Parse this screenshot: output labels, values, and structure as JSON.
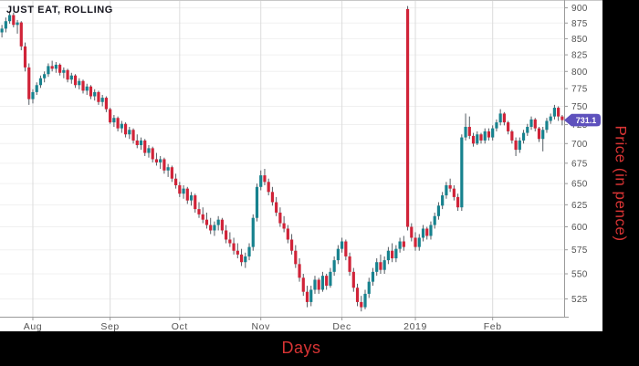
{
  "title": "JUST EAT, ROLLING",
  "axes": {
    "y_label": "Price (in pence)",
    "x_label": "Days"
  },
  "price_badge": {
    "value": "731.1"
  },
  "colors": {
    "up": "#17828e",
    "down": "#d02338",
    "wick": "#555c63",
    "grid_h": "#f0f0f0",
    "grid_v": "#dcdcdc",
    "axis": "#9a9a9a",
    "border_top": "#c8c8c8",
    "tick_label": "#525252",
    "axis_title": "#d83434",
    "panel_bg": "#000000",
    "chart_bg": "#ffffff",
    "badge_bg": "#5e51bd",
    "badge_text": "#ffffff",
    "title_color": "#15151e"
  },
  "chart_data": {
    "type": "candlestick",
    "title": "JUST EAT, ROLLING",
    "xlabel": "Days",
    "ylabel": "Price (in pence)",
    "y_scale": "log",
    "ylim": [
      508,
      907
    ],
    "grid": true,
    "y_ticks": [
      900,
      875,
      850,
      825,
      800,
      775,
      750,
      725,
      700,
      675,
      650,
      625,
      600,
      575,
      550,
      525
    ],
    "x_ticks": [
      {
        "label": "Aug",
        "index": 8
      },
      {
        "label": "Sep",
        "index": 28
      },
      {
        "label": "Oct",
        "index": 46
      },
      {
        "label": "Nov",
        "index": 67
      },
      {
        "label": "Dec",
        "index": 88
      },
      {
        "label": "2019",
        "index": 107
      },
      {
        "label": "Feb",
        "index": 127
      }
    ],
    "last_price": 731.1,
    "candles": [
      [
        860,
        872,
        852,
        866
      ],
      [
        866,
        884,
        860,
        878
      ],
      [
        878,
        895,
        874,
        888
      ],
      [
        888,
        892,
        868,
        872
      ],
      [
        872,
        880,
        858,
        876
      ],
      [
        876,
        878,
        832,
        838
      ],
      [
        838,
        844,
        800,
        806
      ],
      [
        806,
        812,
        752,
        760
      ],
      [
        760,
        774,
        754,
        770
      ],
      [
        770,
        784,
        766,
        780
      ],
      [
        780,
        794,
        776,
        790
      ],
      [
        790,
        800,
        784,
        796
      ],
      [
        796,
        812,
        792,
        808
      ],
      [
        808,
        816,
        800,
        804
      ],
      [
        804,
        814,
        798,
        810
      ],
      [
        810,
        812,
        794,
        798
      ],
      [
        798,
        806,
        790,
        802
      ],
      [
        802,
        804,
        784,
        788
      ],
      [
        788,
        798,
        782,
        794
      ],
      [
        794,
        796,
        776,
        780
      ],
      [
        780,
        790,
        774,
        786
      ],
      [
        786,
        788,
        768,
        772
      ],
      [
        772,
        782,
        766,
        778
      ],
      [
        778,
        780,
        760,
        764
      ],
      [
        764,
        774,
        758,
        770
      ],
      [
        770,
        772,
        752,
        756
      ],
      [
        756,
        766,
        750,
        762
      ],
      [
        762,
        764,
        742,
        746
      ],
      [
        746,
        748,
        726,
        728
      ],
      [
        728,
        738,
        722,
        734
      ],
      [
        734,
        736,
        716,
        720
      ],
      [
        720,
        730,
        714,
        726
      ],
      [
        726,
        728,
        708,
        712
      ],
      [
        712,
        722,
        706,
        718
      ],
      [
        718,
        720,
        700,
        704
      ],
      [
        704,
        712,
        694,
        698
      ],
      [
        698,
        708,
        692,
        704
      ],
      [
        704,
        706,
        684,
        688
      ],
      [
        688,
        698,
        682,
        694
      ],
      [
        694,
        696,
        676,
        680
      ],
      [
        680,
        688,
        672,
        676
      ],
      [
        676,
        684,
        668,
        680
      ],
      [
        680,
        682,
        662,
        666
      ],
      [
        666,
        674,
        658,
        670
      ],
      [
        670,
        672,
        652,
        656
      ],
      [
        656,
        662,
        644,
        648
      ],
      [
        648,
        652,
        634,
        638
      ],
      [
        638,
        648,
        632,
        644
      ],
      [
        644,
        646,
        626,
        630
      ],
      [
        630,
        640,
        624,
        636
      ],
      [
        636,
        638,
        616,
        620
      ],
      [
        620,
        628,
        610,
        614
      ],
      [
        614,
        622,
        604,
        608
      ],
      [
        608,
        616,
        598,
        602
      ],
      [
        602,
        610,
        592,
        596
      ],
      [
        596,
        606,
        590,
        602
      ],
      [
        602,
        612,
        596,
        608
      ],
      [
        608,
        610,
        592,
        596
      ],
      [
        596,
        602,
        582,
        586
      ],
      [
        586,
        594,
        578,
        582
      ],
      [
        582,
        588,
        570,
        574
      ],
      [
        574,
        582,
        566,
        570
      ],
      [
        570,
        576,
        558,
        562
      ],
      [
        562,
        572,
        556,
        568
      ],
      [
        568,
        582,
        564,
        578
      ],
      [
        578,
        614,
        574,
        610
      ],
      [
        610,
        650,
        606,
        646
      ],
      [
        646,
        666,
        642,
        660
      ],
      [
        660,
        668,
        648,
        652
      ],
      [
        652,
        656,
        636,
        640
      ],
      [
        640,
        646,
        624,
        628
      ],
      [
        628,
        634,
        612,
        616
      ],
      [
        616,
        622,
        600,
        604
      ],
      [
        604,
        612,
        594,
        598
      ],
      [
        598,
        602,
        582,
        586
      ],
      [
        586,
        592,
        570,
        574
      ],
      [
        574,
        580,
        556,
        560
      ],
      [
        560,
        566,
        542,
        546
      ],
      [
        546,
        550,
        528,
        532
      ],
      [
        532,
        538,
        517,
        522
      ],
      [
        522,
        538,
        518,
        534
      ],
      [
        534,
        548,
        530,
        544
      ],
      [
        544,
        546,
        530,
        534
      ],
      [
        534,
        552,
        532,
        548
      ],
      [
        548,
        550,
        534,
        538
      ],
      [
        538,
        556,
        536,
        552
      ],
      [
        552,
        568,
        548,
        564
      ],
      [
        564,
        580,
        560,
        576
      ],
      [
        576,
        588,
        572,
        584
      ],
      [
        584,
        586,
        564,
        568
      ],
      [
        568,
        572,
        548,
        552
      ],
      [
        552,
        556,
        532,
        536
      ],
      [
        536,
        540,
        518,
        522
      ],
      [
        522,
        528,
        513,
        517
      ],
      [
        517,
        534,
        515,
        530
      ],
      [
        530,
        546,
        526,
        542
      ],
      [
        542,
        556,
        538,
        552
      ],
      [
        552,
        566,
        548,
        562
      ],
      [
        562,
        570,
        550,
        554
      ],
      [
        554,
        568,
        550,
        564
      ],
      [
        564,
        578,
        560,
        574
      ],
      [
        574,
        582,
        562,
        566
      ],
      [
        566,
        580,
        562,
        576
      ],
      [
        576,
        588,
        572,
        584
      ],
      [
        584,
        590,
        574,
        578
      ],
      [
        898,
        903,
        596,
        600
      ],
      [
        600,
        604,
        584,
        588
      ],
      [
        588,
        594,
        574,
        578
      ],
      [
        578,
        592,
        574,
        588
      ],
      [
        588,
        602,
        584,
        598
      ],
      [
        598,
        600,
        586,
        590
      ],
      [
        590,
        606,
        586,
        602
      ],
      [
        602,
        616,
        598,
        612
      ],
      [
        612,
        628,
        608,
        624
      ],
      [
        624,
        640,
        620,
        636
      ],
      [
        636,
        652,
        632,
        648
      ],
      [
        648,
        656,
        640,
        644
      ],
      [
        644,
        648,
        630,
        634
      ],
      [
        634,
        638,
        618,
        622
      ],
      [
        622,
        712,
        618,
        708
      ],
      [
        708,
        740,
        704,
        722
      ],
      [
        722,
        736,
        706,
        710
      ],
      [
        710,
        714,
        696,
        700
      ],
      [
        700,
        716,
        698,
        712
      ],
      [
        712,
        714,
        700,
        704
      ],
      [
        704,
        720,
        700,
        716
      ],
      [
        716,
        720,
        704,
        708
      ],
      [
        708,
        724,
        704,
        720
      ],
      [
        720,
        732,
        716,
        728
      ],
      [
        728,
        746,
        724,
        740
      ],
      [
        740,
        742,
        724,
        728
      ],
      [
        728,
        730,
        712,
        716
      ],
      [
        716,
        718,
        700,
        704
      ],
      [
        704,
        708,
        684,
        692
      ],
      [
        692,
        708,
        688,
        704
      ],
      [
        704,
        718,
        700,
        714
      ],
      [
        714,
        726,
        710,
        722
      ],
      [
        722,
        736,
        718,
        732
      ],
      [
        732,
        734,
        716,
        720
      ],
      [
        720,
        722,
        702,
        706
      ],
      [
        706,
        722,
        690,
        718
      ],
      [
        718,
        734,
        714,
        730
      ],
      [
        730,
        740,
        726,
        736
      ],
      [
        736,
        752,
        732,
        748
      ],
      [
        748,
        750,
        730,
        736
      ],
      [
        736,
        738,
        724,
        731.1
      ]
    ]
  }
}
